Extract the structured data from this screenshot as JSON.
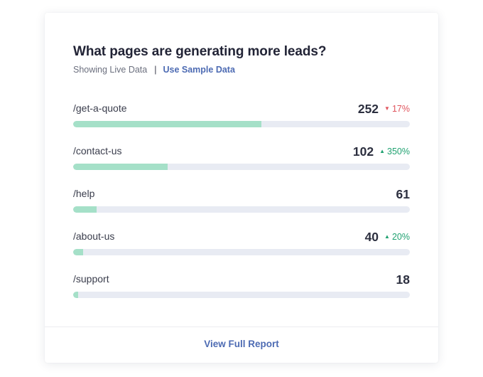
{
  "widget": {
    "title": "What pages are generating more leads?",
    "data_source_label": "Showing Live Data",
    "separator": "|",
    "sample_link": "Use Sample Data",
    "footer_link": "View Full Report"
  },
  "colors": {
    "bar_fill": "#a5e0c8",
    "bar_track": "#e8ebf3",
    "link": "#4d6bb3",
    "down": "#e0545d",
    "up": "#20a271"
  },
  "rows": [
    {
      "page": "/get-a-quote",
      "count": "252",
      "change": "17%",
      "direction": "down",
      "fill_fraction": 0.56
    },
    {
      "page": "/contact-us",
      "count": "102",
      "change": "350%",
      "direction": "up",
      "fill_fraction": 0.28
    },
    {
      "page": "/help",
      "count": "61",
      "change": "",
      "direction": "",
      "fill_fraction": 0.07
    },
    {
      "page": "/about-us",
      "count": "40",
      "change": "20%",
      "direction": "up",
      "fill_fraction": 0.03
    },
    {
      "page": "/support",
      "count": "18",
      "change": "",
      "direction": "",
      "fill_fraction": 0.015
    }
  ]
}
